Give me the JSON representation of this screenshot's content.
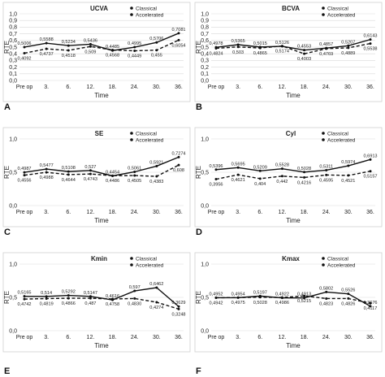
{
  "chart_data": [
    {
      "type": "line",
      "panel": "A",
      "title": "UCVA",
      "xlabel": "Time",
      "ylabel": "RTE",
      "categories": [
        "Pre op",
        "3.",
        "6.",
        "12.",
        "18.",
        "24.",
        "30.",
        "36."
      ],
      "ylim": [
        0,
        1.0
      ],
      "yticks": [
        "0,0",
        "0,1",
        "0,2",
        "0,3",
        "0,4",
        "0,5",
        "0,6",
        "0,7",
        "0,8",
        "0,9",
        "1,0"
      ],
      "legend_position": "top-right",
      "series": [
        {
          "name": "Classical",
          "style": "solid",
          "values": [
            0.5006,
            0.5588,
            0.5234,
            0.5436,
            0.4485,
            0.4995,
            0.5706,
            0.7081
          ],
          "labels": [
            "0,5006",
            "0,5588",
            "0,5234",
            "0,5436",
            "0,4485",
            "0,4995",
            "0,5706",
            "0,7081"
          ]
        },
        {
          "name": "Accelerated",
          "style": "dashed",
          "values": [
            0.4092,
            0.4737,
            0.4518,
            0.509,
            0.4568,
            0.4449,
            0.455,
            0.6054
          ],
          "labels": [
            "0,4092",
            "0,4737",
            "0,4518",
            "0,509",
            "0,4568",
            "0,4449",
            "0,455",
            "0,6054"
          ]
        }
      ]
    },
    {
      "type": "line",
      "panel": "B",
      "title": "BCVA",
      "xlabel": "Time",
      "ylabel": "RTE",
      "categories": [
        "Pre op",
        "3.",
        "6.",
        "12.",
        "18.",
        "24.",
        "30.",
        "36."
      ],
      "ylim": [
        0,
        1.0
      ],
      "yticks": [
        "0,0",
        "0,1",
        "0,2",
        "0,3",
        "0,4",
        "0,5",
        "0,6",
        "0,7",
        "0,8",
        "0,9",
        "1,0"
      ],
      "legend_position": "top-right",
      "series": [
        {
          "name": "Classical",
          "style": "solid",
          "values": [
            0.4978,
            0.5365,
            0.5015,
            0.5126,
            0.4553,
            0.4857,
            0.5207,
            0.6143
          ],
          "labels": [
            "0,4978",
            "0,5365",
            "0,5015",
            "0,5126",
            "0,4553",
            "0,4857",
            "0,5207",
            "0,6143"
          ]
        },
        {
          "name": "Accelerated",
          "style": "dashed",
          "values": [
            0.4824,
            0.503,
            0.4865,
            0.5174,
            0.4003,
            0.4769,
            0.4889,
            0.5538
          ],
          "labels": [
            "0,4824",
            "0,503",
            "0,4865",
            "0,5174",
            "0,4003",
            "0,4769",
            "0,4889",
            "0,5538"
          ]
        }
      ]
    },
    {
      "type": "line",
      "panel": "C",
      "title": "SE",
      "xlabel": "Time",
      "ylabel": "RTE",
      "categories": [
        "Pre op",
        "3.",
        "6.",
        "12.",
        "18.",
        "24.",
        "30.",
        "36."
      ],
      "ylim": [
        0,
        1.0
      ],
      "yticks": [
        "0,0",
        "0,5",
        "1,0"
      ],
      "legend_position": "top-right",
      "series": [
        {
          "name": "Classical",
          "style": "solid",
          "values": [
            0.4987,
            0.5477,
            0.5108,
            0.527,
            0.4454,
            0.5061,
            0.5921,
            0.7274
          ],
          "labels": [
            "0,4987",
            "0,5477",
            "0,5108",
            "0,527",
            "0,4454",
            "0,5061",
            "0,5921",
            "0,7274"
          ]
        },
        {
          "name": "Accelerated",
          "style": "dashed",
          "values": [
            0.4556,
            0.4988,
            0.4644,
            0.4743,
            0.4486,
            0.4505,
            0.4383,
            0.608
          ],
          "labels": [
            "0,4556",
            "0,4988",
            "0,4644",
            "0,4743",
            "0,4486",
            "0,4505",
            "0,4383",
            "0,608"
          ]
        }
      ]
    },
    {
      "type": "line",
      "panel": "D",
      "title": "Cyl",
      "xlabel": "Time",
      "ylabel": "RTE",
      "categories": [
        "Pre op",
        "3.",
        "6.",
        "12.",
        "18.",
        "24.",
        "30.",
        "36."
      ],
      "ylim": [
        0,
        1.0
      ],
      "yticks": [
        "0,0",
        "0,5",
        "1,0"
      ],
      "legend_position": "top-right",
      "series": [
        {
          "name": "Classical",
          "style": "solid",
          "values": [
            0.5396,
            0.5695,
            0.5209,
            0.5528,
            0.5028,
            0.5311,
            0.5974,
            0.6913
          ],
          "labels": [
            "0,5396",
            "0,5695",
            "0,5209",
            "0,5528",
            "0,5028",
            "0,5311",
            "0,5974",
            "0,6913"
          ]
        },
        {
          "name": "Accelerated",
          "style": "dashed",
          "values": [
            0.3956,
            0.4621,
            0.404,
            0.442,
            0.4216,
            0.4595,
            0.4521,
            0.5157
          ],
          "labels": [
            "0,3956",
            "0,4621",
            "0,404",
            "0,442",
            "0,4216",
            "0,4595",
            "0,4521",
            "0,5157"
          ]
        }
      ]
    },
    {
      "type": "line",
      "panel": "E",
      "title": "Kmin",
      "xlabel": "Time",
      "ylabel": "RTE",
      "categories": [
        "Pre op",
        "3.",
        "6.",
        "12.",
        "18.",
        "24.",
        "30.",
        "36."
      ],
      "ylim": [
        0,
        1.0
      ],
      "yticks": [
        "0,0",
        "0,5",
        "1,0"
      ],
      "legend_position": "top-right",
      "series": [
        {
          "name": "Classical",
          "style": "solid",
          "values": [
            0.5165,
            0.514,
            0.5292,
            0.5147,
            0.4616,
            0.597,
            0.6462,
            0.3629
          ],
          "labels": [
            "0,5165",
            "0,514",
            "0,5292",
            "0,5147",
            "0,4616",
            "0,597",
            "0,6462",
            "0,3629"
          ]
        },
        {
          "name": "Accelerated",
          "style": "dashed",
          "values": [
            0.4742,
            0.4819,
            0.4866,
            0.487,
            0.4758,
            0.483,
            0.4274,
            0.3248
          ],
          "labels": [
            "0,4742",
            "0,4819",
            "0,4866",
            "0,487",
            "0,4758",
            "0,4830",
            "0,4274",
            "0,3248"
          ]
        }
      ]
    },
    {
      "type": "line",
      "panel": "F",
      "title": "Kmax",
      "xlabel": "Time",
      "ylabel": "RTE",
      "categories": [
        "Pre op",
        "3.",
        "6.",
        "12.",
        "18.",
        "24.",
        "30.",
        "36."
      ],
      "ylim": [
        0,
        1.0
      ],
      "yticks": [
        "0,0",
        "0,5",
        "1,0"
      ],
      "legend_position": "top-right",
      "series": [
        {
          "name": "Classical",
          "style": "solid",
          "values": [
            0.4952,
            0.4954,
            0.5197,
            0.4922,
            0.4913,
            0.5802,
            0.5526,
            0.3676
          ],
          "labels": [
            "0,4952",
            "0,4954",
            "0,5197",
            "0,4922",
            "0,4913",
            "0,5802",
            "0,5526",
            "0,3676"
          ]
        },
        {
          "name": "Accelerated",
          "style": "dashed",
          "values": [
            0.4942,
            0.4975,
            0.5028,
            0.4986,
            0.5215,
            0.4823,
            0.4826,
            0.4117
          ],
          "labels": [
            "0,4942",
            "0,4975",
            "0,5028",
            "0,4986",
            "0,5215",
            "0,4823",
            "0,4826",
            "0,4117"
          ]
        }
      ]
    }
  ]
}
